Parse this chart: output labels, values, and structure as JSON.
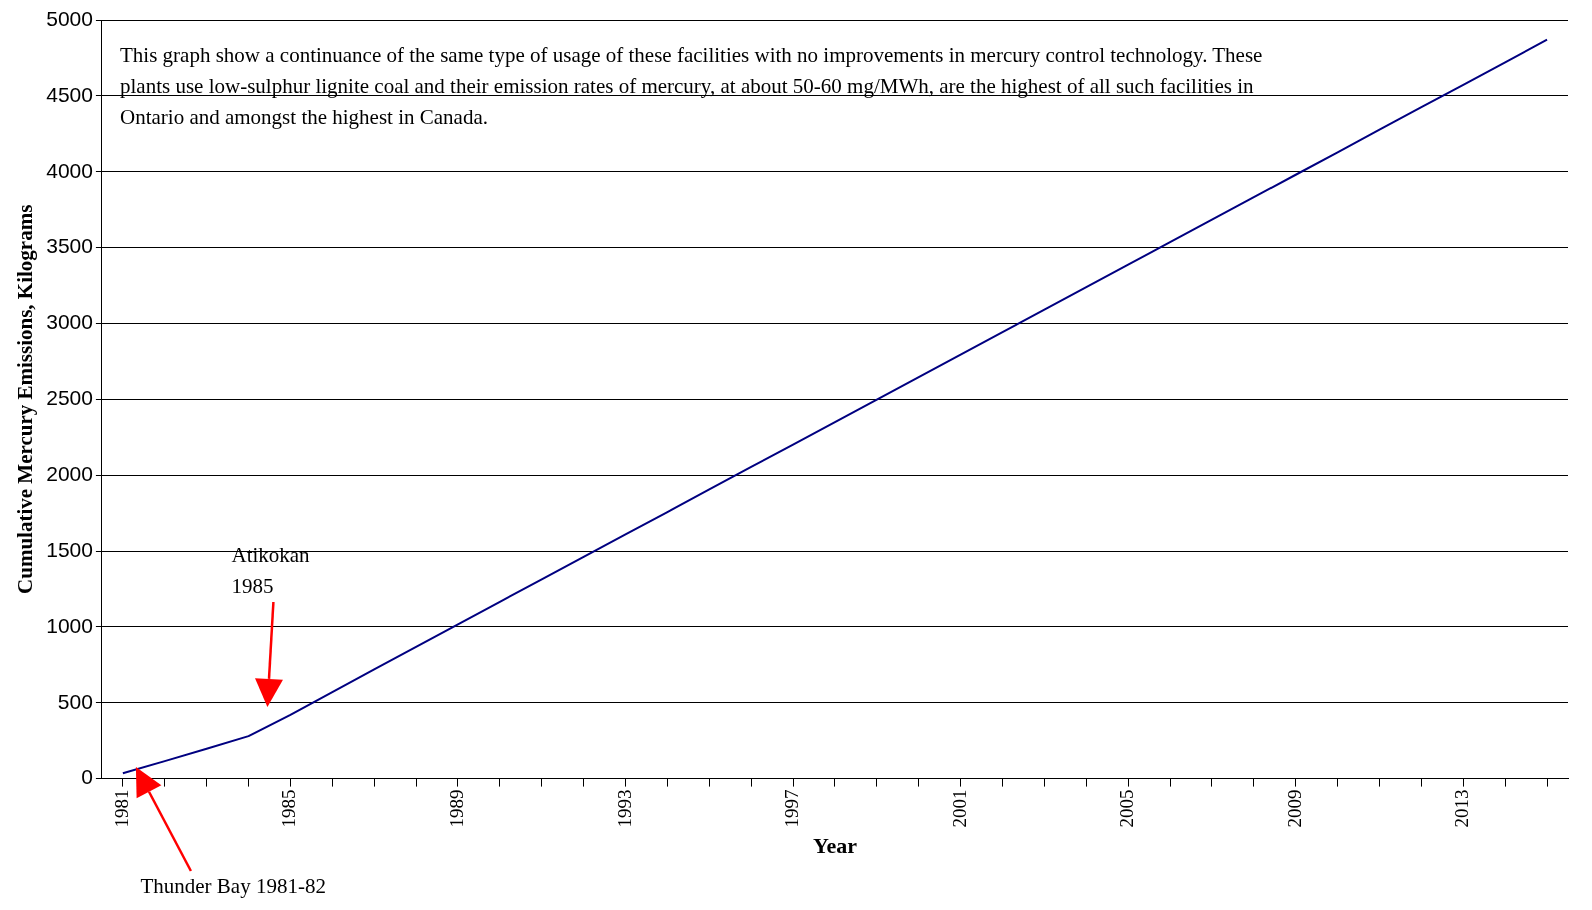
{
  "chart_data": {
    "type": "line",
    "xlabel": "Year",
    "ylabel": "Cumulative Mercury Emissions, Kilograms",
    "categories": [
      "1981",
      null,
      null,
      null,
      "1985",
      null,
      null,
      null,
      "1989",
      null,
      null,
      null,
      "1993",
      null,
      null,
      null,
      "1997",
      null,
      null,
      null,
      "2001",
      null,
      null,
      null,
      "2005",
      null,
      null,
      null,
      "2009",
      null,
      null,
      null,
      "2013",
      null,
      null
    ],
    "series": [
      {
        "color": "#000080",
        "values": [
          35,
          115,
          197,
          280,
          420,
          570,
          720,
          868,
          1016,
          1165,
          1313,
          1461,
          1609,
          1757,
          1906,
          2054,
          2202,
          2350,
          2498,
          2646,
          2795,
          2943,
          3091,
          3239,
          3387,
          3536,
          3684,
          3832,
          3980,
          4128,
          4277,
          4425,
          4573,
          4721,
          4870
        ]
      }
    ],
    "ylim": [
      0,
      5000
    ],
    "yticks": [
      0,
      500,
      1000,
      1500,
      2000,
      2500,
      3000,
      3500,
      4000,
      4500,
      5000
    ],
    "grid": "y",
    "legend": false,
    "marker": "none",
    "line_style": "solid",
    "annotations": [
      "This graph show a continuance of the same type of usage of these facilities with no improvements in mercury control technology. These plants use low-sulphur lignite coal and  their emission rates of mercury, at about 50-60 mg/MWh, are the highest of all such facilities in Ontario and amongst the highest in Canada.",
      "Atikokan 1985",
      "Thunder Bay 1981-82"
    ]
  }
}
